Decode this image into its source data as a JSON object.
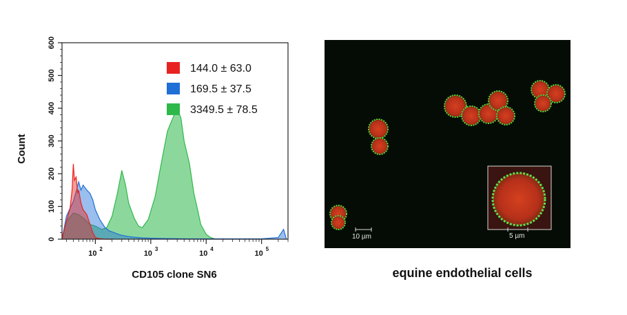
{
  "chart_data": {
    "type": "histogram",
    "xlabel": "CD105 clone SN6",
    "ylabel": "Count",
    "xscale": "log",
    "xlim": [
      25,
      300000
    ],
    "ylim": [
      0,
      600
    ],
    "yticks": [
      "0",
      "100",
      "200",
      "300",
      "400",
      "500",
      "600"
    ],
    "xticks": [
      {
        "value": 100,
        "base": "10",
        "exp": "2"
      },
      {
        "value": 1000,
        "base": "10",
        "exp": "3"
      },
      {
        "value": 10000,
        "base": "10",
        "exp": "4"
      },
      {
        "value": 100000,
        "base": "10",
        "exp": "5"
      }
    ],
    "legend_position": "top-right",
    "series": [
      {
        "label": "144.0 ± 63.0",
        "color": "#e8231f",
        "x": [
          25,
          30,
          35,
          38,
          40,
          42,
          45,
          48,
          50,
          55,
          60,
          70,
          80,
          90,
          100,
          115,
          130,
          150,
          180,
          200
        ],
        "y": [
          0,
          55,
          95,
          150,
          230,
          180,
          190,
          140,
          150,
          110,
          90,
          75,
          45,
          20,
          5,
          2,
          1,
          0,
          0,
          0
        ]
      },
      {
        "label": "169.5 ± 37.5",
        "color": "#1f6fd6",
        "x": [
          25,
          30,
          35,
          40,
          45,
          50,
          55,
          60,
          70,
          80,
          90,
          100,
          120,
          150,
          180,
          220,
          260,
          300,
          400,
          500,
          700,
          1000,
          2000,
          5000,
          20000,
          100000,
          200000,
          250000,
          280000
        ],
        "y": [
          0,
          70,
          95,
          115,
          145,
          175,
          150,
          165,
          150,
          140,
          120,
          90,
          60,
          35,
          25,
          20,
          15,
          12,
          8,
          6,
          4,
          3,
          2,
          1,
          1,
          1,
          5,
          30,
          0
        ]
      },
      {
        "label": "3349.5 ± 78.5",
        "color": "#2eb84a",
        "x": [
          25,
          30,
          40,
          50,
          60,
          70,
          80,
          100,
          130,
          160,
          200,
          250,
          300,
          350,
          400,
          500,
          600,
          700,
          900,
          1200,
          1500,
          2000,
          2500,
          3000,
          3500,
          4000,
          5000,
          6000,
          7000,
          8000,
          10000,
          12000,
          15000
        ],
        "y": [
          0,
          55,
          80,
          75,
          65,
          55,
          45,
          40,
          30,
          35,
          70,
          140,
          210,
          165,
          110,
          65,
          40,
          35,
          60,
          130,
          220,
          330,
          370,
          400,
          370,
          300,
          230,
          140,
          90,
          45,
          15,
          5,
          0
        ]
      }
    ]
  },
  "image_panel": {
    "scale_bar_main": "10 µm",
    "scale_bar_inset": "5 µm",
    "caption": "equine endothelial cells",
    "colors": {
      "nucleus": "#c83a1e",
      "membrane": "#4ed83a",
      "background": "#050c05"
    }
  }
}
